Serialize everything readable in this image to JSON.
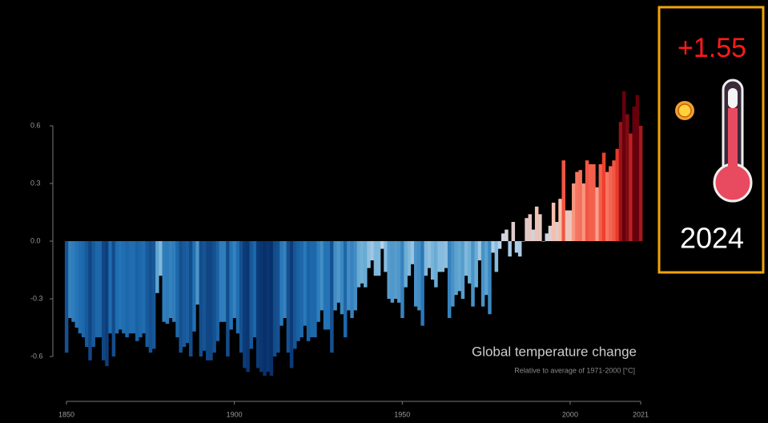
{
  "chart_data": {
    "type": "bar",
    "title": "Global temperature change",
    "subtitle": "Relative to average of 1971-2000  [°C]",
    "callout_value": "+1.55",
    "callout_year": "2024",
    "x": [
      1850,
      1851,
      1852,
      1853,
      1854,
      1855,
      1856,
      1857,
      1858,
      1859,
      1860,
      1861,
      1862,
      1863,
      1864,
      1865,
      1866,
      1867,
      1868,
      1869,
      1870,
      1871,
      1872,
      1873,
      1874,
      1875,
      1876,
      1877,
      1878,
      1879,
      1880,
      1881,
      1882,
      1883,
      1884,
      1885,
      1886,
      1887,
      1888,
      1889,
      1890,
      1891,
      1892,
      1893,
      1894,
      1895,
      1896,
      1897,
      1898,
      1899,
      1900,
      1901,
      1902,
      1903,
      1904,
      1905,
      1906,
      1907,
      1908,
      1909,
      1910,
      1911,
      1912,
      1913,
      1914,
      1915,
      1916,
      1917,
      1918,
      1919,
      1920,
      1921,
      1922,
      1923,
      1924,
      1925,
      1926,
      1927,
      1928,
      1929,
      1930,
      1931,
      1932,
      1933,
      1934,
      1935,
      1936,
      1937,
      1938,
      1939,
      1940,
      1941,
      1942,
      1943,
      1944,
      1945,
      1946,
      1947,
      1948,
      1949,
      1950,
      1951,
      1952,
      1953,
      1954,
      1955,
      1956,
      1957,
      1958,
      1959,
      1960,
      1961,
      1962,
      1963,
      1964,
      1965,
      1966,
      1967,
      1968,
      1969,
      1970,
      1971,
      1972,
      1973,
      1974,
      1975,
      1976,
      1977,
      1978,
      1979,
      1980,
      1981,
      1982,
      1983,
      1984,
      1985,
      1986,
      1987,
      1988,
      1989,
      1990,
      1991,
      1992,
      1993,
      1994,
      1995,
      1996,
      1997,
      1998,
      1999,
      2000,
      2001,
      2002,
      2003,
      2004,
      2005,
      2006,
      2007,
      2008,
      2009,
      2010,
      2011,
      2012,
      2013,
      2014,
      2015,
      2016,
      2017,
      2018,
      2019,
      2020,
      2021
    ],
    "values": [
      -0.58,
      -0.4,
      -0.42,
      -0.45,
      -0.48,
      -0.5,
      -0.55,
      -0.62,
      -0.55,
      -0.5,
      -0.5,
      -0.62,
      -0.65,
      -0.48,
      -0.6,
      -0.48,
      -0.46,
      -0.48,
      -0.5,
      -0.48,
      -0.48,
      -0.52,
      -0.5,
      -0.48,
      -0.55,
      -0.58,
      -0.56,
      -0.27,
      -0.18,
      -0.42,
      -0.43,
      -0.4,
      -0.42,
      -0.5,
      -0.58,
      -0.55,
      -0.53,
      -0.6,
      -0.47,
      -0.33,
      -0.6,
      -0.57,
      -0.62,
      -0.62,
      -0.58,
      -0.52,
      -0.42,
      -0.42,
      -0.6,
      -0.46,
      -0.4,
      -0.48,
      -0.58,
      -0.66,
      -0.68,
      -0.56,
      -0.5,
      -0.66,
      -0.68,
      -0.7,
      -0.68,
      -0.7,
      -0.6,
      -0.58,
      -0.44,
      -0.4,
      -0.58,
      -0.66,
      -0.56,
      -0.52,
      -0.5,
      -0.44,
      -0.52,
      -0.5,
      -0.5,
      -0.42,
      -0.36,
      -0.46,
      -0.46,
      -0.58,
      -0.36,
      -0.32,
      -0.38,
      -0.5,
      -0.36,
      -0.4,
      -0.36,
      -0.24,
      -0.22,
      -0.24,
      -0.14,
      -0.1,
      -0.18,
      -0.18,
      -0.04,
      -0.16,
      -0.3,
      -0.32,
      -0.3,
      -0.32,
      -0.4,
      -0.24,
      -0.18,
      -0.12,
      -0.34,
      -0.36,
      -0.44,
      -0.18,
      -0.14,
      -0.2,
      -0.24,
      -0.16,
      -0.16,
      -0.14,
      -0.4,
      -0.34,
      -0.28,
      -0.26,
      -0.3,
      -0.18,
      -0.22,
      -0.34,
      -0.24,
      -0.1,
      -0.34,
      -0.28,
      -0.38,
      -0.06,
      -0.16,
      -0.04,
      0.04,
      0.06,
      -0.08,
      0.1,
      -0.06,
      -0.08,
      0.0,
      0.12,
      0.14,
      0.06,
      0.18,
      0.14,
      0.0,
      0.04,
      0.08,
      0.2,
      0.1,
      0.22,
      0.42,
      0.16,
      0.16,
      0.3,
      0.36,
      0.37,
      0.3,
      0.42,
      0.4,
      0.4,
      0.28,
      0.4,
      0.46,
      0.36,
      0.39,
      0.42,
      0.48,
      0.62,
      0.78,
      0.66,
      0.56,
      0.7,
      0.76,
      0.6
    ],
    "colormap": [
      "#08306b",
      "#2171b5",
      "#6baed6",
      "#c6dbef",
      "#fcbba1",
      "#ef3b2c",
      "#67000d"
    ],
    "clim": [
      -0.7,
      0.7
    ],
    "xlim": [
      1850,
      2021
    ],
    "xticks": [
      1850,
      1900,
      1950,
      2000,
      2021
    ],
    "ylim": [
      -0.8,
      0.8
    ],
    "yticks": [
      0.6,
      0.3,
      {
        "value": 0,
        "label": "0.0"
      },
      -0.3,
      -0.6
    ]
  }
}
